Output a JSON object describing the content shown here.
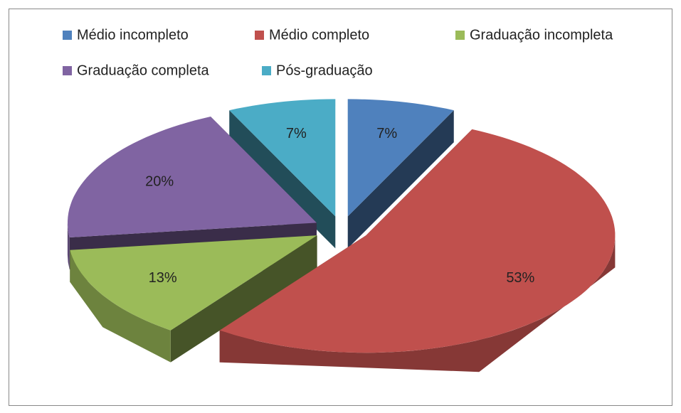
{
  "chart_data": {
    "type": "pie",
    "categories": [
      "Médio incompleto",
      "Médio completo",
      "Graduação incompleta",
      "Graduação completa",
      "Pós-graduação"
    ],
    "values": [
      7,
      53,
      13,
      20,
      7
    ],
    "value_labels": [
      "7%",
      "53%",
      "13%",
      "20%",
      "7%"
    ],
    "colors": [
      "#4f81bd",
      "#c0504d",
      "#9bbb59",
      "#8064a2",
      "#4bacc6"
    ],
    "legend": "top"
  }
}
